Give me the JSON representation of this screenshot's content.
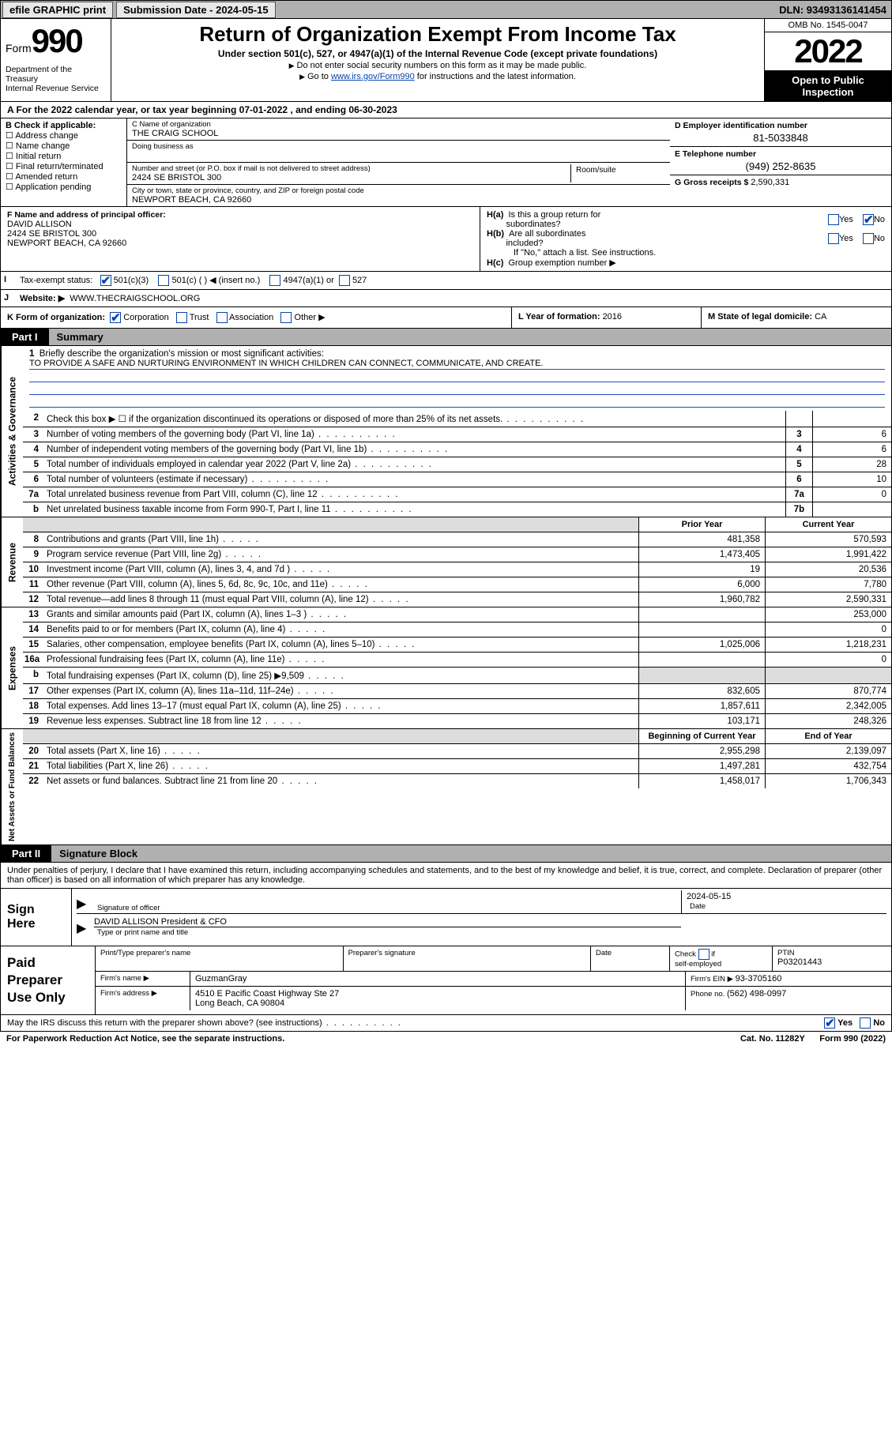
{
  "topbar": {
    "efile": "efile GRAPHIC print",
    "subdate_label": "Submission Date - ",
    "subdate": "2024-05-15",
    "dln_label": "DLN: ",
    "dln": "93493136141454"
  },
  "header": {
    "form_word": "Form",
    "form_num": "990",
    "dept": "Department of the Treasury\nInternal Revenue Service",
    "title": "Return of Organization Exempt From Income Tax",
    "sub1": "Under section 501(c), 527, or 4947(a)(1) of the Internal Revenue Code (except private foundations)",
    "sub2": "Do not enter social security numbers on this form as it may be made public.",
    "sub3_pre": "Go to ",
    "sub3_link": "www.irs.gov/Form990",
    "sub3_post": " for instructions and the latest information.",
    "omb": "OMB No. 1545-0047",
    "year": "2022",
    "open": "Open to Public Inspection"
  },
  "lineA": {
    "pre": "A For the 2022 calendar year, or tax year beginning ",
    "begin": "07-01-2022",
    "mid": " , and ending ",
    "end": "06-30-2023"
  },
  "colB": {
    "hdr": "B Check if applicable:",
    "items": [
      "Address change",
      "Name change",
      "Initial return",
      "Final return/terminated",
      "Amended return",
      "Application pending"
    ]
  },
  "colC": {
    "name_lbl": "C Name of organization",
    "name": "THE CRAIG SCHOOL",
    "dba_lbl": "Doing business as",
    "street_lbl": "Number and street (or P.O. box if mail is not delivered to street address)",
    "room_lbl": "Room/suite",
    "street": "2424 SE BRISTOL 300",
    "city_lbl": "City or town, state or province, country, and ZIP or foreign postal code",
    "city": "NEWPORT BEACH, CA  92660"
  },
  "colD": {
    "d_lbl": "D Employer identification number",
    "d_val": "81-5033848",
    "e_lbl": "E Telephone number",
    "e_val": "(949) 252-8635",
    "g_lbl": "G Gross receipts $ ",
    "g_val": "2,590,331"
  },
  "fh": {
    "f_lbl": "F Name and address of principal officer:",
    "f_name": "DAVID ALLISON",
    "f_addr1": "2424 SE BRISTOL 300",
    "f_addr2": "NEWPORT BEACH, CA  92660",
    "ha": "H(a)  Is this a group return for subordinates?",
    "hb": "H(b)  Are all subordinates included?",
    "hb_note": "If \"No,\" attach a list. See instructions.",
    "hc": "H(c)  Group exemption number ▶",
    "yes": "Yes",
    "no": "No"
  },
  "i": {
    "label": "Tax-exempt status:",
    "o1": "501(c)(3)",
    "o2": "501(c) (  ) ◀ (insert no.)",
    "o3": "4947(a)(1) or",
    "o4": "527"
  },
  "j": {
    "label": "Website: ▶",
    "val": "WWW.THECRAIGSCHOOL.ORG"
  },
  "k": {
    "label": "K Form of organization:",
    "o1": "Corporation",
    "o2": "Trust",
    "o3": "Association",
    "o4": "Other ▶"
  },
  "l": {
    "label": "L Year of formation: ",
    "val": "2016"
  },
  "m": {
    "label": "M State of legal domicile: ",
    "val": "CA"
  },
  "part1": {
    "num": "Part I",
    "title": "Summary"
  },
  "mission": {
    "q": "1   Briefly describe the organization's mission or most significant activities:",
    "text": "TO PROVIDE A SAFE AND NURTURING ENVIRONMENT IN WHICH CHILDREN CAN CONNECT, COMMUNICATE, AND CREATE."
  },
  "gov_lines": [
    {
      "n": "2",
      "d": "Check this box ▶ ☐  if the organization discontinued its operations or disposed of more than 25% of its net assets.",
      "box": "",
      "v": ""
    },
    {
      "n": "3",
      "d": "Number of voting members of the governing body (Part VI, line 1a)",
      "box": "3",
      "v": "6"
    },
    {
      "n": "4",
      "d": "Number of independent voting members of the governing body (Part VI, line 1b)",
      "box": "4",
      "v": "6"
    },
    {
      "n": "5",
      "d": "Total number of individuals employed in calendar year 2022 (Part V, line 2a)",
      "box": "5",
      "v": "28"
    },
    {
      "n": "6",
      "d": "Total number of volunteers (estimate if necessary)",
      "box": "6",
      "v": "10"
    },
    {
      "n": "7a",
      "d": "Total unrelated business revenue from Part VIII, column (C), line 12",
      "box": "7a",
      "v": "0"
    },
    {
      "n": "b",
      "d": "Net unrelated business taxable income from Form 990-T, Part I, line 11",
      "box": "7b",
      "v": ""
    }
  ],
  "vlab_gov": "Activities & Governance",
  "vlab_rev": "Revenue",
  "vlab_exp": "Expenses",
  "vlab_net": "Net Assets or Fund Balances",
  "fin_hdr": {
    "py": "Prior Year",
    "cy": "Current Year"
  },
  "rev_lines": [
    {
      "n": "8",
      "d": "Contributions and grants (Part VIII, line 1h)",
      "pv": "481,358",
      "cv": "570,593"
    },
    {
      "n": "9",
      "d": "Program service revenue (Part VIII, line 2g)",
      "pv": "1,473,405",
      "cv": "1,991,422"
    },
    {
      "n": "10",
      "d": "Investment income (Part VIII, column (A), lines 3, 4, and 7d )",
      "pv": "19",
      "cv": "20,536"
    },
    {
      "n": "11",
      "d": "Other revenue (Part VIII, column (A), lines 5, 6d, 8c, 9c, 10c, and 11e)",
      "pv": "6,000",
      "cv": "7,780"
    },
    {
      "n": "12",
      "d": "Total revenue—add lines 8 through 11 (must equal Part VIII, column (A), line 12)",
      "pv": "1,960,782",
      "cv": "2,590,331"
    }
  ],
  "exp_lines": [
    {
      "n": "13",
      "d": "Grants and similar amounts paid (Part IX, column (A), lines 1–3 )",
      "pv": "",
      "cv": "253,000"
    },
    {
      "n": "14",
      "d": "Benefits paid to or for members (Part IX, column (A), line 4)",
      "pv": "",
      "cv": "0"
    },
    {
      "n": "15",
      "d": "Salaries, other compensation, employee benefits (Part IX, column (A), lines 5–10)",
      "pv": "1,025,006",
      "cv": "1,218,231"
    },
    {
      "n": "16a",
      "d": "Professional fundraising fees (Part IX, column (A), line 11e)",
      "pv": "",
      "cv": "0"
    },
    {
      "n": "b",
      "d": "Total fundraising expenses (Part IX, column (D), line 25) ▶9,509",
      "pv": "grey",
      "cv": "grey"
    },
    {
      "n": "17",
      "d": "Other expenses (Part IX, column (A), lines 11a–11d, 11f–24e)",
      "pv": "832,605",
      "cv": "870,774"
    },
    {
      "n": "18",
      "d": "Total expenses. Add lines 13–17 (must equal Part IX, column (A), line 25)",
      "pv": "1,857,611",
      "cv": "2,342,005"
    },
    {
      "n": "19",
      "d": "Revenue less expenses. Subtract line 18 from line 12",
      "pv": "103,171",
      "cv": "248,326"
    }
  ],
  "net_hdr": {
    "py": "Beginning of Current Year",
    "cy": "End of Year"
  },
  "net_lines": [
    {
      "n": "20",
      "d": "Total assets (Part X, line 16)",
      "pv": "2,955,298",
      "cv": "2,139,097"
    },
    {
      "n": "21",
      "d": "Total liabilities (Part X, line 26)",
      "pv": "1,497,281",
      "cv": "432,754"
    },
    {
      "n": "22",
      "d": "Net assets or fund balances. Subtract line 21 from line 20",
      "pv": "1,458,017",
      "cv": "1,706,343"
    }
  ],
  "part2": {
    "num": "Part II",
    "title": "Signature Block"
  },
  "sig_intro": "Under penalties of perjury, I declare that I have examined this return, including accompanying schedules and statements, and to the best of my knowledge and belief, it is true, correct, and complete. Declaration of preparer (other than officer) is based on all information of which preparer has any knowledge.",
  "sign": {
    "here": "Sign Here",
    "sig_cap": "Signature of officer",
    "date": "2024-05-15",
    "date_cap": "Date",
    "name": "DAVID ALLISON  President & CFO",
    "name_cap": "Type or print name and title"
  },
  "prep": {
    "label": "Paid Preparer Use Only",
    "h1": "Print/Type preparer's name",
    "h2": "Preparer's signature",
    "h3": "Date",
    "h4": "Check ☐ if self-employed",
    "h5": "PTIN",
    "ptin": "P03201443",
    "firm_lbl": "Firm's name   ▶",
    "firm": "GuzmanGray",
    "ein_lbl": "Firm's EIN ▶ ",
    "ein": "93-3705160",
    "addr_lbl": "Firm's address ▶",
    "addr1": "4510 E Pacific Coast Highway Ste 27",
    "addr2": "Long Beach, CA  90804",
    "phone_lbl": "Phone no. ",
    "phone": "(562) 498-0997"
  },
  "footer": {
    "may": "May the IRS discuss this return with the preparer shown above? (see instructions)",
    "yes": "Yes",
    "no": "No",
    "pra": "For Paperwork Reduction Act Notice, see the separate instructions.",
    "cat": "Cat. No. 11282Y",
    "form": "Form 990 (2022)"
  }
}
